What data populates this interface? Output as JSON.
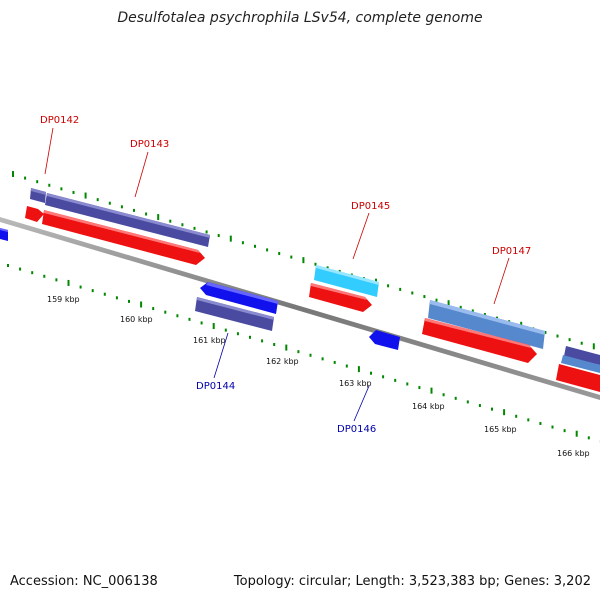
{
  "title": "Desulfotalea psychrophila LSv54, complete genome",
  "footer": {
    "accession": "Accession: NC_006138",
    "topology": "Topology: circular; Length: 3,523,383 bp; Genes: 3,202"
  },
  "colors": {
    "forward_cds": "#ee1111",
    "reverse_cds": "#1111ee",
    "forward_gene": "#4a4aa0",
    "light_gene": "#33ccff",
    "steel_gene": "#5588cc",
    "backbone": "#888888",
    "tick_green": "#008800",
    "label_top": "#cc0000",
    "label_bottom": "#0000aa"
  },
  "scale_labels": [
    "159 kbp",
    "160 kbp",
    "161 kbp",
    "162 kbp",
    "163 kbp",
    "164 kbp",
    "165 kbp",
    "166 kbp"
  ],
  "genes_top": [
    "DP0142",
    "DP0143",
    "DP0145",
    "DP0147"
  ],
  "genes_bottom": [
    "DP0144",
    "DP0146"
  ]
}
